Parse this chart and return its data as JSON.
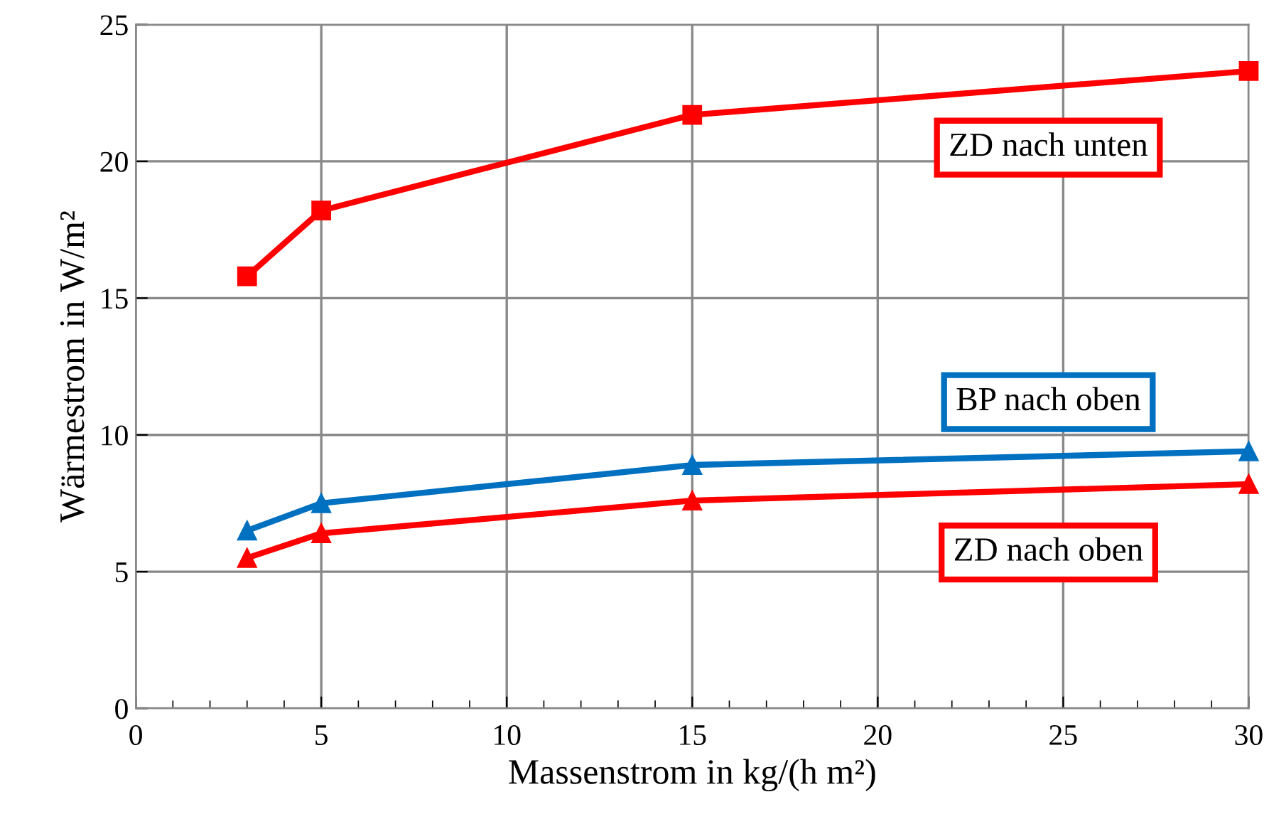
{
  "chart_data": {
    "type": "line",
    "xlabel": "Massenstrom in kg/(h m²)",
    "ylabel": "Wärmestrom in W/m²",
    "x": [
      3,
      5,
      15,
      30
    ],
    "series": [
      {
        "name": "ZD nach unten",
        "color": "#ff0000",
        "marker": "square",
        "values": [
          15.8,
          18.2,
          21.7,
          23.3
        ]
      },
      {
        "name": "BP nach oben",
        "color": "#0070c0",
        "marker": "triangle",
        "values": [
          6.5,
          7.5,
          8.9,
          9.4
        ]
      },
      {
        "name": "ZD nach oben",
        "color": "#ff0000",
        "marker": "triangle",
        "values": [
          5.5,
          6.4,
          7.6,
          8.2
        ]
      }
    ],
    "xlim": [
      0,
      30
    ],
    "ylim": [
      0,
      25
    ],
    "xticks": [
      0,
      5,
      10,
      15,
      20,
      25,
      30
    ],
    "yticks": [
      0,
      5,
      10,
      15,
      20,
      25
    ],
    "grid": true,
    "legend": false
  }
}
